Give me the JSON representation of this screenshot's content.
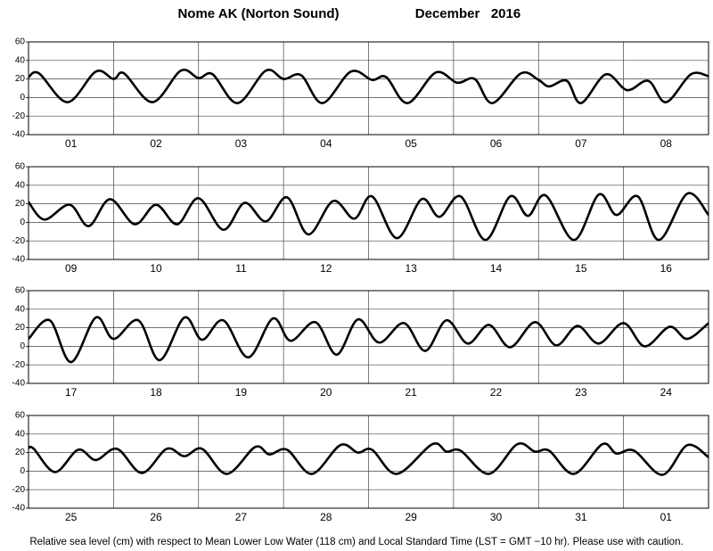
{
  "title": "Nome AK (Norton Sound)",
  "period": "December   2016",
  "footnote": "Relative sea level (cm) with respect to Mean Lower Low Water (118 cm) and Local Standard Time (LST = GMT −10 hr). Please use with caution.",
  "chart_data": [
    {
      "type": "line",
      "categories": [
        "01",
        "02",
        "03",
        "04",
        "05",
        "06",
        "07",
        "08"
      ],
      "color": "#000000",
      "xlim": [
        0,
        192
      ],
      "xticks": [
        0,
        24,
        48,
        72,
        96,
        120,
        144,
        168,
        192
      ],
      "ylim": [
        -40,
        60
      ],
      "yticks": [
        -40,
        -20,
        0,
        20,
        40,
        60
      ],
      "grid": true,
      "x": [
        0,
        3,
        11,
        19,
        24,
        27,
        35,
        43,
        48,
        52,
        59,
        67,
        72,
        77,
        83,
        91,
        97,
        101,
        107,
        115,
        121,
        126,
        131,
        139,
        144,
        147,
        152,
        156,
        163,
        169,
        175,
        180,
        187,
        192
      ],
      "values": [
        22,
        26,
        -5,
        28,
        20,
        26,
        -5,
        29,
        21,
        25,
        -6,
        29,
        20,
        24,
        -6,
        28,
        19,
        22,
        -6,
        27,
        16,
        20,
        -6,
        26,
        19,
        12,
        18,
        -6,
        25,
        8,
        18,
        -5,
        25,
        23
      ]
    },
    {
      "type": "line",
      "categories": [
        "09",
        "10",
        "11",
        "12",
        "13",
        "14",
        "15",
        "16"
      ],
      "color": "#000000",
      "xlim": [
        0,
        192
      ],
      "xticks": [
        0,
        24,
        48,
        72,
        96,
        120,
        144,
        168,
        192
      ],
      "ylim": [
        -40,
        60
      ],
      "yticks": [
        -40,
        -20,
        0,
        20,
        40,
        60
      ],
      "grid": true,
      "x": [
        0,
        4.5,
        11.6,
        17,
        23,
        30,
        36,
        42,
        48,
        55,
        61,
        67,
        73,
        79,
        86,
        92,
        97,
        104,
        111,
        116,
        122,
        129,
        136,
        141,
        146,
        154,
        161,
        166,
        172,
        178,
        186,
        192
      ],
      "values": [
        22,
        3,
        19,
        -4,
        25,
        -2,
        19,
        -2,
        26,
        -8,
        21,
        1,
        27,
        -13,
        23,
        4,
        28,
        -17,
        25,
        6,
        28,
        -19,
        28,
        7,
        29,
        -19,
        30,
        8,
        28,
        -19,
        31,
        8
      ]
    },
    {
      "type": "line",
      "categories": [
        "17",
        "18",
        "19",
        "20",
        "21",
        "22",
        "23",
        "24"
      ],
      "color": "#000000",
      "xlim": [
        0,
        192
      ],
      "xticks": [
        0,
        24,
        48,
        72,
        96,
        120,
        144,
        168,
        192
      ],
      "ylim": [
        -40,
        60
      ],
      "yticks": [
        -40,
        -20,
        0,
        20,
        40,
        60
      ],
      "grid": true,
      "x": [
        0,
        6,
        12,
        19,
        24,
        31,
        37,
        44,
        49,
        55,
        62,
        69,
        74,
        81,
        87,
        93,
        99,
        106,
        112,
        118,
        124,
        130,
        136,
        143,
        149,
        155,
        161,
        168,
        174,
        181,
        186,
        192
      ],
      "values": [
        8,
        28,
        -17,
        31,
        8,
        28,
        -15,
        31,
        7,
        28,
        -12,
        30,
        6,
        26,
        -9,
        29,
        4,
        25,
        -5,
        28,
        3,
        23,
        -1,
        26,
        1,
        22,
        3,
        25,
        0,
        21,
        8,
        25
      ]
    },
    {
      "type": "line",
      "categories": [
        "25",
        "26",
        "27",
        "28",
        "29",
        "30",
        "31",
        "01"
      ],
      "color": "#000000",
      "xlim": [
        0,
        192
      ],
      "xticks": [
        0,
        24,
        48,
        72,
        96,
        120,
        144,
        168,
        192
      ],
      "ylim": [
        -40,
        60
      ],
      "yticks": [
        -40,
        -20,
        0,
        20,
        40,
        60
      ],
      "grid": true,
      "x": [
        0,
        1.5,
        7.5,
        14,
        19,
        25,
        32,
        39,
        44,
        49,
        56,
        64,
        68,
        73,
        80,
        88,
        93,
        97,
        104,
        114,
        118,
        122,
        130,
        138,
        143,
        147,
        154,
        162,
        166,
        171,
        179,
        186,
        192
      ],
      "values": [
        25,
        24,
        -1,
        23,
        12,
        24,
        -2,
        24,
        16,
        24,
        -3,
        26,
        18,
        23,
        -3,
        28,
        20,
        23,
        -3,
        29,
        21,
        22,
        -3,
        29,
        21,
        22,
        -3,
        29,
        19,
        22,
        -4,
        28,
        15
      ]
    }
  ]
}
